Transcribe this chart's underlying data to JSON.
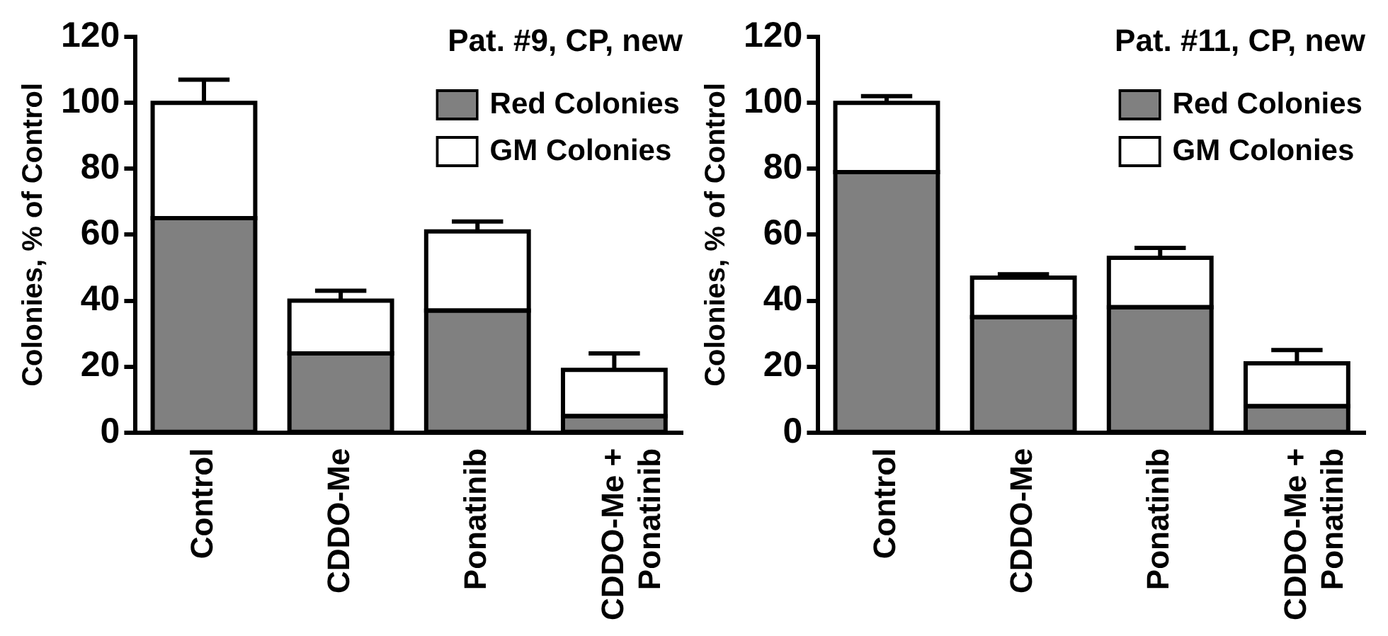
{
  "chart_data": [
    {
      "type": "bar",
      "title": "Pat. #9, CP, new",
      "ylabel": "Colonies, % of Control",
      "categories": [
        "Control",
        "CDDO-Me",
        "Ponatinib",
        "CDDO-Me + Ponatinib"
      ],
      "stacked": true,
      "ylim": [
        0,
        120
      ],
      "yticks": [
        0,
        20,
        40,
        60,
        80,
        100,
        120
      ],
      "grid": false,
      "legend": "top right",
      "series": [
        {
          "name": "Red Colonies",
          "color": "#808080",
          "values": [
            65,
            24,
            37,
            5
          ],
          "errors": [
            11,
            3,
            4,
            2
          ]
        },
        {
          "name": "GM Colonies",
          "color": "#ffffff",
          "values": [
            35,
            16,
            24,
            14
          ],
          "errors": [
            7,
            3,
            3,
            5
          ]
        }
      ]
    },
    {
      "type": "bar",
      "title": "Pat. #11, CP, new",
      "ylabel": "Colonies, % of Control",
      "categories": [
        "Control",
        "CDDO-Me",
        "Ponatinib",
        "CDDO-Me + Ponatinib"
      ],
      "stacked": true,
      "ylim": [
        0,
        120
      ],
      "yticks": [
        0,
        20,
        40,
        60,
        80,
        100,
        120
      ],
      "grid": false,
      "legend": "top right",
      "series": [
        {
          "name": "Red Colonies",
          "color": "#808080",
          "values": [
            79,
            35,
            38,
            8
          ],
          "errors": [
            9,
            3,
            4,
            4
          ]
        },
        {
          "name": "GM Colonies",
          "color": "#ffffff",
          "values": [
            21,
            12,
            15,
            13
          ],
          "errors": [
            2,
            1,
            3,
            4
          ]
        }
      ]
    }
  ]
}
